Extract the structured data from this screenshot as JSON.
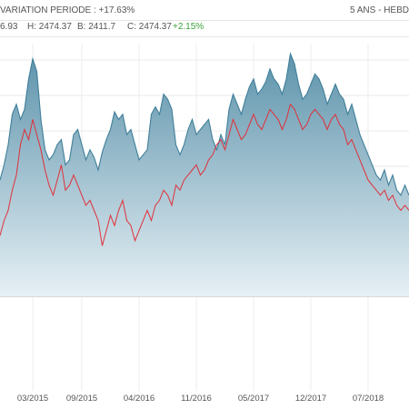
{
  "header": {
    "title": "VARIATION PERIODE : +17.63%",
    "period": "5 ANS - HEBD"
  },
  "ohlc": {
    "open": "6.93",
    "high": "H: 2474.37",
    "low": "B: 2411.7",
    "close_label": "C: 2474.37",
    "change": "+2.15%"
  },
  "chart_data": {
    "type": "area",
    "title": "VARIATION PERIODE : +17.63%",
    "x_tick_labels": [
      "03/2015",
      "09/2015",
      "04/2016",
      "11/2016",
      "05/2017",
      "12/2017",
      "07/2018"
    ],
    "x_tick_positions": [
      4,
      10,
      17,
      24,
      31,
      38,
      45
    ],
    "x_range": [
      0,
      50
    ],
    "y_range": [
      0,
      100
    ],
    "grid": true,
    "colors": {
      "area_line": "#3f7f99",
      "area_fill_top": "#5d93ab",
      "area_fill_bottom": "#e6f0f5",
      "comparison_line": "#e0303a"
    },
    "series": [
      {
        "x": [
          0,
          0.5,
          1,
          1.5,
          2,
          2.5,
          3,
          3.5,
          4,
          4.5,
          5,
          5.5,
          6,
          6.5,
          7,
          7.5,
          8,
          8.5,
          9,
          9.5,
          10,
          10.5,
          11,
          11.5,
          12,
          12.5,
          13,
          13.5,
          14,
          14.5,
          15,
          15.5,
          16,
          16.5,
          17,
          17.5,
          18,
          18.5,
          19,
          19.5,
          20,
          20.5,
          21,
          21.5,
          22,
          22.5,
          23,
          23.5,
          24,
          24.5,
          25,
          25.5,
          26,
          26.5,
          27,
          27.5,
          28,
          28.5,
          29,
          29.5,
          30,
          30.5,
          31,
          31.5,
          32,
          32.5,
          33,
          33.5,
          34,
          34.5,
          35,
          35.5,
          36,
          36.5,
          37,
          37.5,
          38,
          38.5,
          39,
          39.5,
          40,
          40.5,
          41,
          41.5,
          42,
          42.5,
          43,
          43.5,
          44,
          44.5,
          45,
          45.5,
          46,
          46.5,
          47,
          47.5,
          48,
          48.5,
          49,
          49.5,
          50
        ],
        "values": [
          46,
          52,
          60,
          72,
          76,
          70,
          74,
          86,
          94,
          89,
          70,
          58,
          54,
          56,
          60,
          62,
          52,
          54,
          64,
          66,
          60,
          54,
          58,
          55,
          50,
          57,
          62,
          66,
          73,
          70,
          72,
          64,
          66,
          60,
          54,
          56,
          58,
          72,
          75,
          72,
          80,
          78,
          74,
          60,
          56,
          60,
          66,
          70,
          64,
          66,
          68,
          70,
          62,
          58,
          64,
          60,
          74,
          80,
          76,
          72,
          78,
          83,
          86,
          80,
          82,
          85,
          90,
          86,
          84,
          80,
          86,
          96,
          92,
          84,
          78,
          80,
          84,
          88,
          86,
          82,
          76,
          80,
          84,
          80,
          78,
          72,
          76,
          70,
          64,
          60,
          56,
          52,
          48,
          46,
          50,
          44,
          48,
          42,
          40,
          44,
          40
        ]
      },
      {
        "x": [
          0,
          0.5,
          1,
          1.5,
          2,
          2.5,
          3,
          3.5,
          4,
          4.5,
          5,
          5.5,
          6,
          6.5,
          7,
          7.5,
          8,
          8.5,
          9,
          9.5,
          10,
          10.5,
          11,
          11.5,
          12,
          12.5,
          13,
          13.5,
          14,
          14.5,
          15,
          15.5,
          16,
          16.5,
          17,
          17.5,
          18,
          18.5,
          19,
          19.5,
          20,
          20.5,
          21,
          21.5,
          22,
          22.5,
          23,
          23.5,
          24,
          24.5,
          25,
          25.5,
          26,
          26.5,
          27,
          27.5,
          28,
          28.5,
          29,
          29.5,
          30,
          30.5,
          31,
          31.5,
          32,
          32.5,
          33,
          33.5,
          34,
          34.5,
          35,
          35.5,
          36,
          36.5,
          37,
          37.5,
          38,
          38.5,
          39,
          39.5,
          40,
          40.5,
          41,
          41.5,
          42,
          42.5,
          43,
          43.5,
          44,
          44.5,
          45,
          45.5,
          46,
          46.5,
          47,
          47.5,
          48,
          48.5,
          49,
          49.5,
          50
        ],
        "values": [
          24,
          30,
          34,
          42,
          48,
          60,
          66,
          62,
          70,
          64,
          58,
          50,
          44,
          40,
          46,
          52,
          42,
          44,
          48,
          44,
          40,
          36,
          38,
          34,
          30,
          20,
          26,
          32,
          28,
          34,
          38,
          30,
          28,
          22,
          26,
          30,
          34,
          30,
          36,
          38,
          42,
          40,
          36,
          44,
          42,
          46,
          48,
          50,
          52,
          48,
          50,
          54,
          56,
          60,
          62,
          58,
          64,
          70,
          66,
          62,
          64,
          68,
          72,
          68,
          66,
          70,
          74,
          72,
          70,
          66,
          70,
          76,
          74,
          70,
          66,
          68,
          72,
          74,
          72,
          70,
          66,
          70,
          72,
          68,
          66,
          60,
          62,
          58,
          54,
          50,
          46,
          44,
          42,
          40,
          42,
          38,
          40,
          36,
          34,
          36,
          34
        ]
      }
    ]
  }
}
